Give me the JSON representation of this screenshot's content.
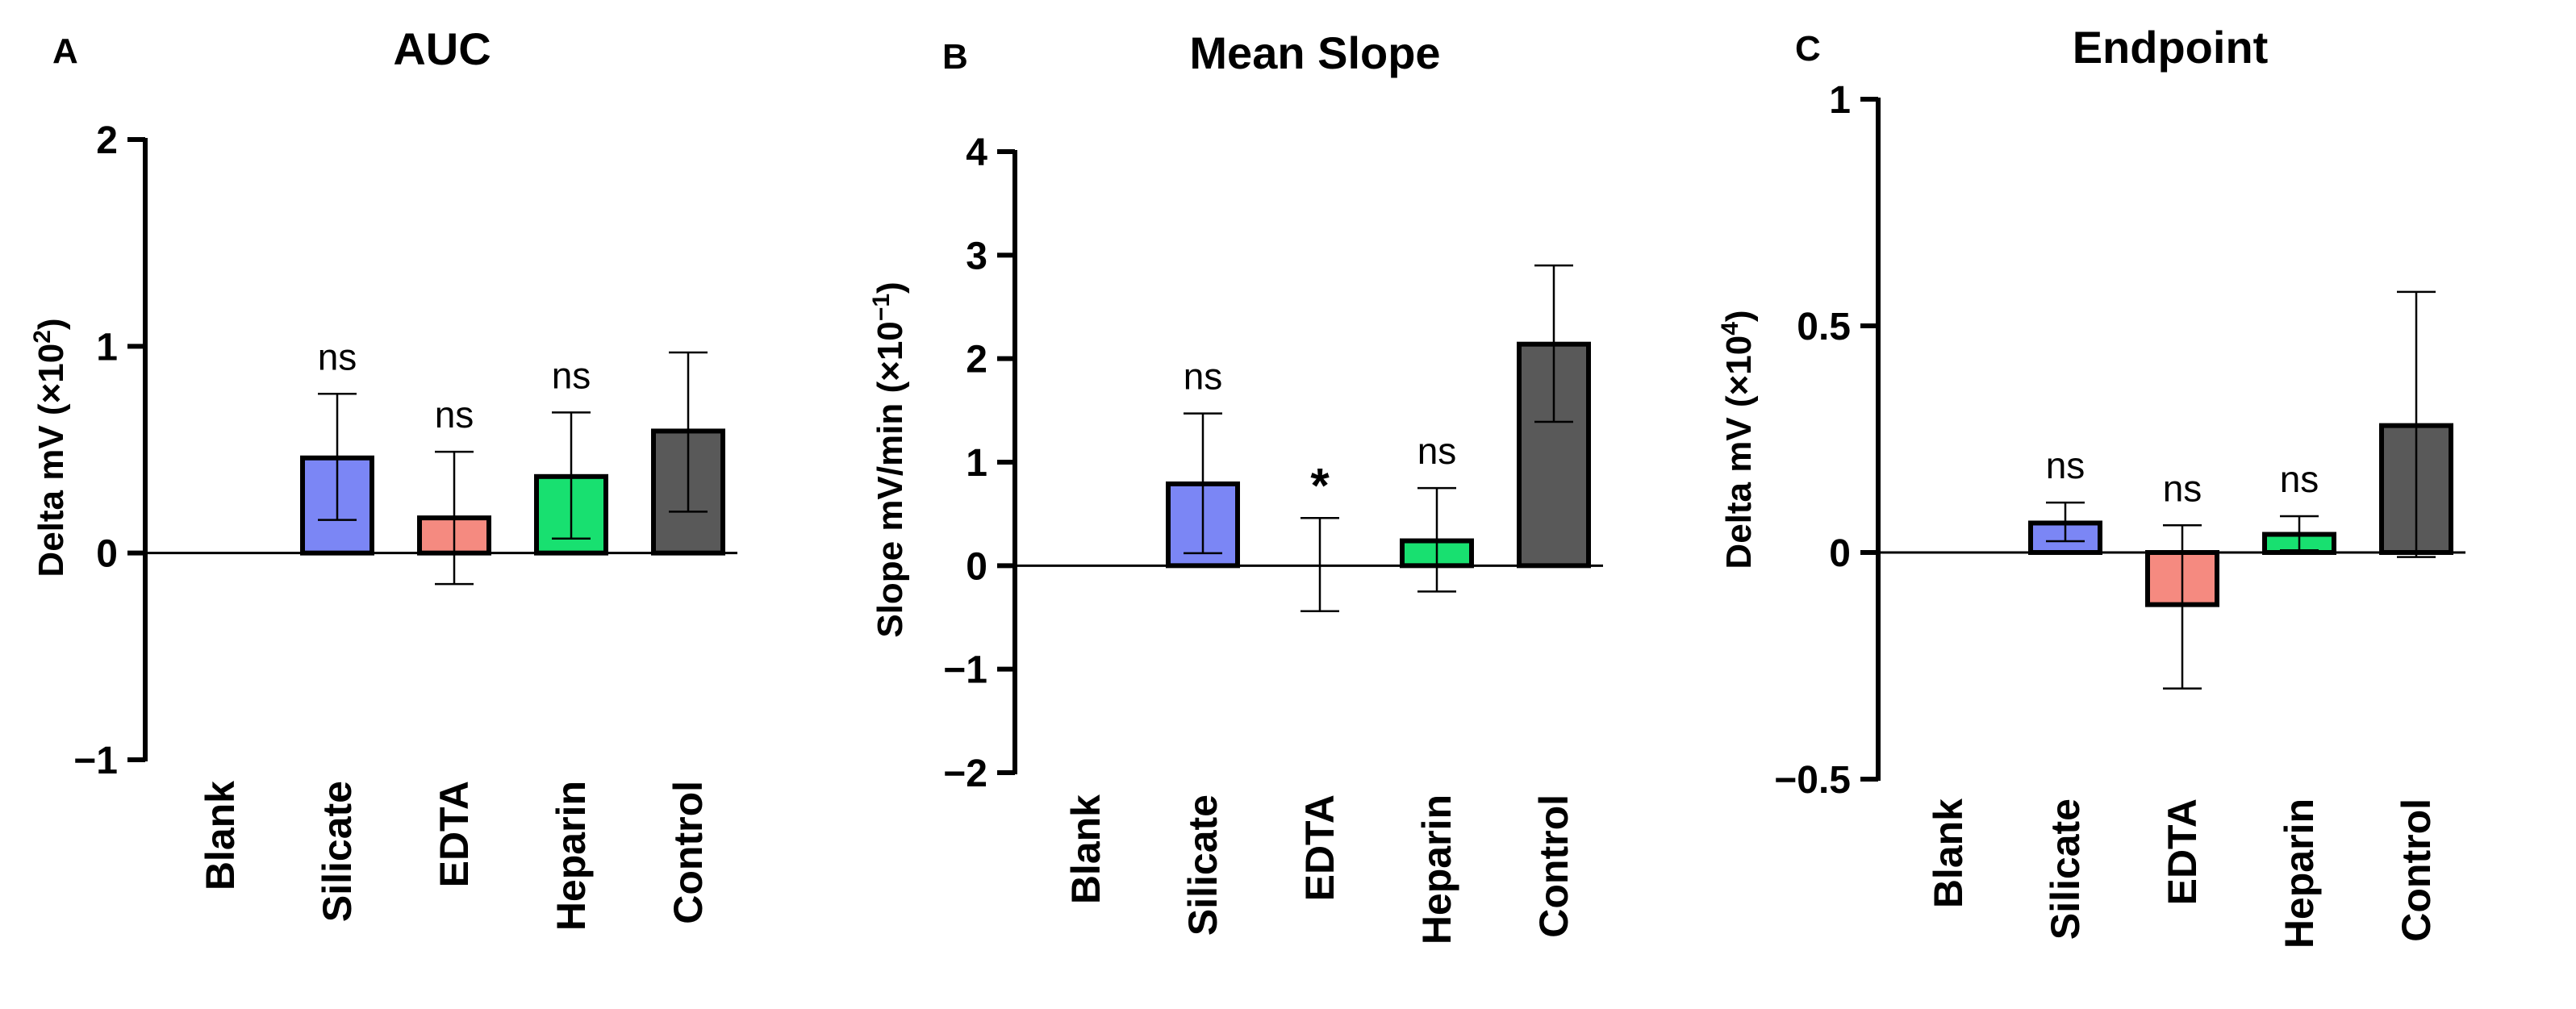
{
  "chart_data": [
    {
      "type": "bar",
      "panel": "A",
      "title": "AUC",
      "ylabel": "Delta mV (×10",
      "ylabel_exp": "2",
      "categories": [
        "Blank",
        "Silicate",
        "EDTA",
        "Heparin",
        "Control"
      ],
      "values": [
        0,
        0.46,
        0.17,
        0.37,
        0.59
      ],
      "err_low": [
        0,
        0.16,
        -0.15,
        0.07,
        0.2
      ],
      "err_high": [
        0,
        0.77,
        0.49,
        0.68,
        0.97
      ],
      "significance": [
        "",
        "ns",
        "ns",
        "ns",
        ""
      ],
      "colors": [
        "#ffffff",
        "#7b86f5",
        "#f58a80",
        "#18e070",
        "#595959"
      ],
      "ylim": [
        -1,
        2
      ],
      "yticks": [
        -1,
        0,
        1,
        2
      ],
      "ytick_labels": [
        "−1",
        "0",
        "1",
        "2"
      ]
    },
    {
      "type": "bar",
      "panel": "B",
      "title": "Mean Slope",
      "ylabel": "Slope mV/min (×10",
      "ylabel_exp": "−1",
      "categories": [
        "Blank",
        "Silicate",
        "EDTA",
        "Heparin",
        "Control"
      ],
      "values": [
        0,
        0.79,
        0,
        0.24,
        2.14
      ],
      "err_low": [
        0,
        0.12,
        -0.44,
        -0.25,
        1.39
      ],
      "err_high": [
        0,
        1.47,
        0.46,
        0.75,
        2.9
      ],
      "significance": [
        "",
        "ns",
        "*",
        "ns",
        ""
      ],
      "colors": [
        "#ffffff",
        "#7b86f5",
        "#f58a80",
        "#18e070",
        "#595959"
      ],
      "ylim": [
        -2,
        4
      ],
      "yticks": [
        -2,
        -1,
        0,
        1,
        2,
        3,
        4
      ],
      "ytick_labels": [
        "−2",
        "−1",
        "0",
        "1",
        "2",
        "3",
        "4"
      ]
    },
    {
      "type": "bar",
      "panel": "C",
      "title": "Endpoint",
      "ylabel": "Delta mV (×10",
      "ylabel_exp": "4",
      "categories": [
        "Blank",
        "Silicate",
        "EDTA",
        "Heparin",
        "Control"
      ],
      "values": [
        0,
        0.065,
        -0.115,
        0.04,
        0.28
      ],
      "err_low": [
        0,
        0.025,
        -0.3,
        0.005,
        -0.01
      ],
      "err_high": [
        0,
        0.11,
        0.06,
        0.08,
        0.575
      ],
      "significance": [
        "",
        "ns",
        "ns",
        "ns",
        ""
      ],
      "colors": [
        "#ffffff",
        "#7b86f5",
        "#f58a80",
        "#18e070",
        "#595959"
      ],
      "ylim": [
        -0.5,
        1
      ],
      "yticks": [
        -0.5,
        0,
        0.5,
        1
      ],
      "ytick_labels": [
        "−0.5",
        "0",
        "0.5",
        "1"
      ]
    }
  ]
}
